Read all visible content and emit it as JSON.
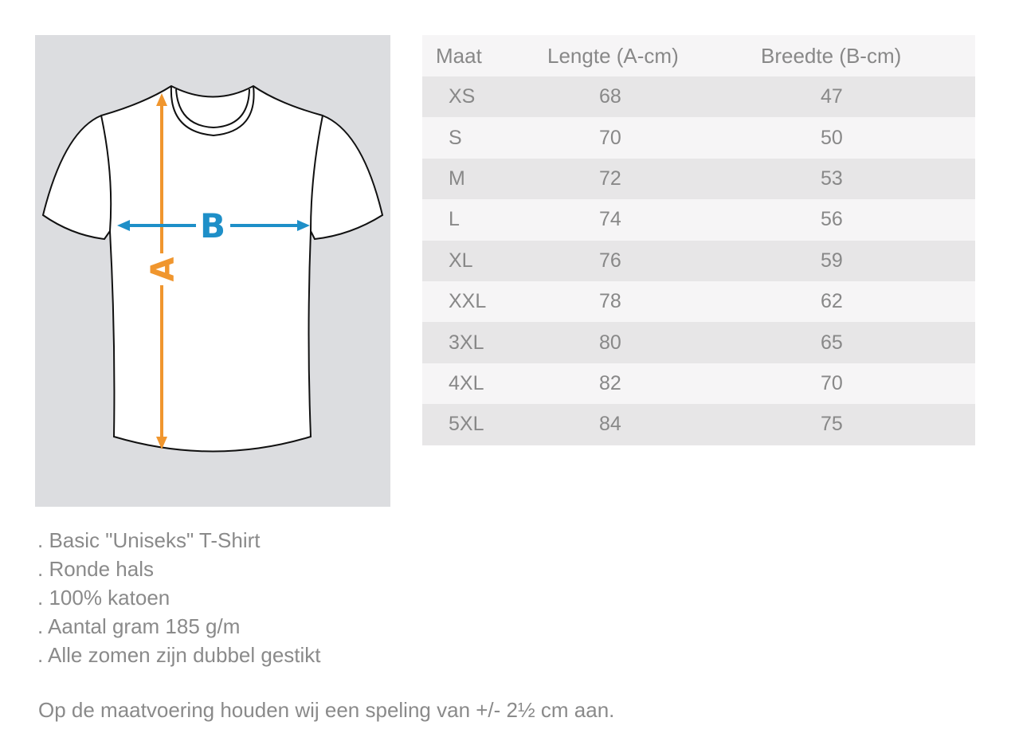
{
  "diagram": {
    "length_label": "A",
    "width_label": "B",
    "length_color": "#f0962e",
    "width_color": "#1e8fc8"
  },
  "table": {
    "headers": [
      "Maat",
      "Lengte (A-cm)",
      "Breedte (B-cm)"
    ],
    "rows": [
      [
        "XS",
        "68",
        "47"
      ],
      [
        "S",
        "70",
        "50"
      ],
      [
        "M",
        "72",
        "53"
      ],
      [
        "L",
        "74",
        "56"
      ],
      [
        "XL",
        "76",
        "59"
      ],
      [
        "XXL",
        "78",
        "62"
      ],
      [
        "3XL",
        "80",
        "65"
      ],
      [
        "4XL",
        "82",
        "70"
      ],
      [
        "5XL",
        "84",
        "75"
      ]
    ]
  },
  "features": [
    ". Basic \"Uniseks\" T-Shirt",
    ". Ronde hals",
    ". 100% katoen",
    ". Aantal gram 185 g/m",
    ". Alle zomen zijn dubbel gestikt"
  ],
  "note": "Op de maatvoering houden wij een speling van +/- 2½ cm aan."
}
